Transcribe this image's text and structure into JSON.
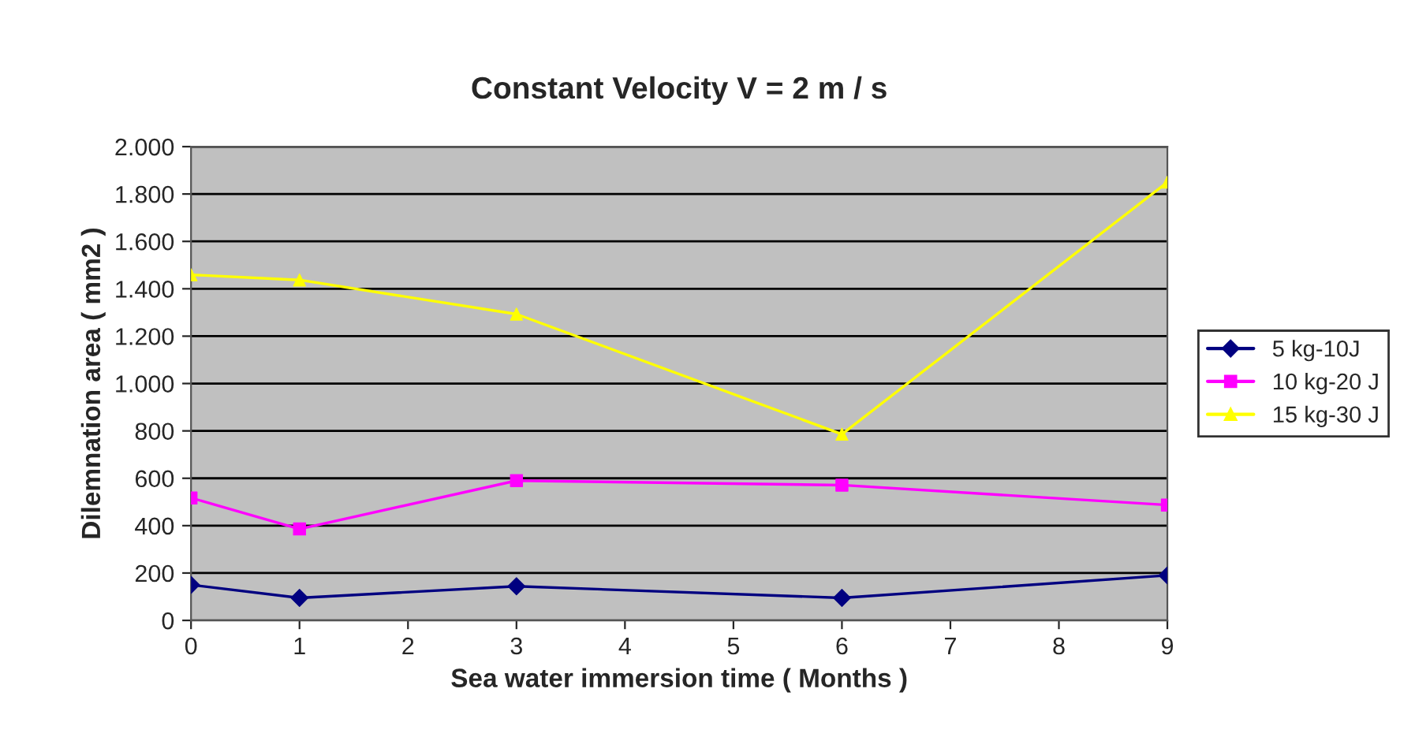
{
  "chart_data": {
    "type": "line",
    "title": "Constant Velocity V = 2 m / s",
    "xlabel": "Sea water immersion time ( Months )",
    "ylabel": "Dilemnation area ( mm2 )",
    "x": [
      0,
      1,
      3,
      6,
      9
    ],
    "series": [
      {
        "name": "5 kg-10J",
        "color": "#000080",
        "marker": "diamond",
        "values": [
          150,
          95,
          144,
          95,
          190
        ]
      },
      {
        "name": "10 kg-20 J",
        "color": "#ff00ff",
        "marker": "square",
        "values": [
          517,
          386,
          590,
          571,
          487
        ]
      },
      {
        "name": "15 kg-30 J",
        "color": "#ffff00",
        "marker": "triangle",
        "values": [
          1459,
          1437,
          1293,
          786,
          1850
        ]
      }
    ],
    "xlim": [
      0,
      9
    ],
    "xticks": [
      0,
      1,
      2,
      3,
      4,
      5,
      6,
      7,
      8,
      9
    ],
    "ylim": [
      0,
      2000
    ],
    "yticks": [
      0,
      200,
      400,
      600,
      800,
      {
        "value": 1000,
        "label": "1.000"
      },
      {
        "value": 1200,
        "label": "1.200"
      },
      {
        "value": 1400,
        "label": "1.400"
      },
      {
        "value": 1600,
        "label": "1.600"
      },
      {
        "value": 1800,
        "label": "1.800"
      },
      {
        "value": 2000,
        "label": "2.000"
      }
    ],
    "grid": "y",
    "legend": "right",
    "line_style": "solid"
  }
}
